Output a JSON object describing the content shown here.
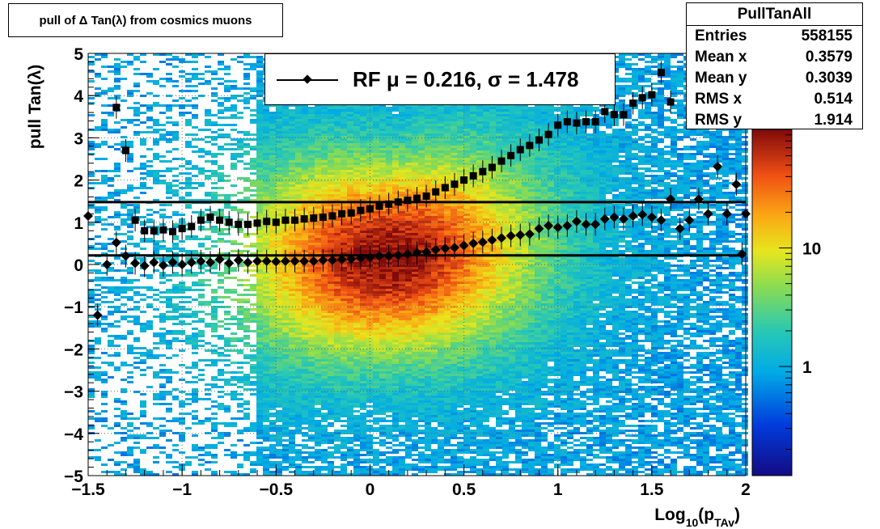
{
  "title": "pull of Δ Tan(λ) from cosmics muons",
  "stats": {
    "name": "PullTanAll",
    "rows": [
      {
        "label": "Entries",
        "value": "558155"
      },
      {
        "label": "Mean x",
        "value": "0.3579"
      },
      {
        "label": "Mean y",
        "value": "0.3039"
      },
      {
        "label": "RMS x",
        "value": "0.514"
      },
      {
        "label": "RMS y",
        "value": "1.914"
      }
    ]
  },
  "legend": {
    "text": "RF μ =  0.216, σ =   1.478"
  },
  "chart_data": {
    "type": "heatmap",
    "xlabel": "Log",
    "xlabel_sub": "10",
    "xlabel_rest": "(p",
    "xlabel_sub2": "TAv",
    "xlabel_end": ")",
    "ylabel": "pull Tan(λ)",
    "xlim": [
      -1.5,
      2
    ],
    "ylim": [
      -5,
      5
    ],
    "xticks": [
      -1.5,
      -1,
      -0.5,
      0,
      0.5,
      1,
      1.5,
      2
    ],
    "xtick_labels": [
      "−1.5",
      "−1",
      "−0.5",
      "0",
      "0.5",
      "1",
      "1.5",
      "2"
    ],
    "yticks": [
      -5,
      -4,
      -3,
      -2,
      -1,
      0,
      1,
      2,
      3,
      4,
      5
    ],
    "ytick_labels": [
      "−5",
      "−4",
      "−3",
      "−2",
      "−1",
      "0",
      "1",
      "2",
      "3",
      "4",
      "5"
    ],
    "colorbar": {
      "scale": "log",
      "range": [
        0.12,
        100
      ],
      "ticks": [
        1,
        10
      ],
      "tick_labels": [
        "1",
        "10"
      ]
    },
    "grid": true,
    "hlines": [
      1.478,
      0.216
    ],
    "series": [
      {
        "marker": "square",
        "points": [
          [
            -1.3,
            2.7
          ],
          [
            -1.25,
            1.05
          ],
          [
            -1.2,
            0.8
          ],
          [
            -1.15,
            0.8
          ],
          [
            -1.1,
            0.82
          ],
          [
            -1.05,
            0.78
          ],
          [
            -1.0,
            0.85
          ],
          [
            -0.95,
            0.9
          ],
          [
            -0.9,
            1.05
          ],
          [
            -0.85,
            1.12
          ],
          [
            -0.8,
            1.05
          ],
          [
            -0.75,
            1.0
          ],
          [
            -0.7,
            0.95
          ],
          [
            -0.65,
            0.95
          ],
          [
            -0.6,
            0.98
          ],
          [
            -0.55,
            1.02
          ],
          [
            -0.5,
            1.0
          ],
          [
            -0.45,
            1.05
          ],
          [
            -0.4,
            1.05
          ],
          [
            -0.35,
            1.08
          ],
          [
            -0.3,
            1.1
          ],
          [
            -0.25,
            1.12
          ],
          [
            -0.2,
            1.15
          ],
          [
            -0.15,
            1.2
          ],
          [
            -0.1,
            1.22
          ],
          [
            -0.05,
            1.28
          ],
          [
            0.0,
            1.32
          ],
          [
            0.05,
            1.38
          ],
          [
            0.1,
            1.43
          ],
          [
            0.15,
            1.48
          ],
          [
            0.2,
            1.52
          ],
          [
            0.25,
            1.57
          ],
          [
            0.3,
            1.62
          ],
          [
            0.35,
            1.72
          ],
          [
            0.4,
            1.82
          ],
          [
            0.45,
            1.9
          ],
          [
            0.5,
            2.0
          ],
          [
            0.55,
            2.1
          ],
          [
            0.6,
            2.2
          ],
          [
            0.65,
            2.3
          ],
          [
            0.7,
            2.45
          ],
          [
            0.75,
            2.58
          ],
          [
            0.8,
            2.72
          ],
          [
            0.85,
            2.82
          ],
          [
            0.9,
            2.95
          ],
          [
            0.95,
            3.08
          ],
          [
            1.0,
            3.3
          ],
          [
            1.05,
            3.38
          ],
          [
            1.1,
            3.35
          ],
          [
            1.15,
            3.38
          ],
          [
            1.2,
            3.38
          ],
          [
            1.25,
            3.62
          ],
          [
            1.3,
            3.55
          ],
          [
            1.35,
            3.55
          ],
          [
            1.4,
            3.82
          ],
          [
            1.45,
            3.95
          ],
          [
            1.5,
            4.02
          ],
          [
            1.55,
            4.55
          ],
          [
            1.6,
            3.85
          ]
        ]
      },
      {
        "marker": "diamond",
        "points": [
          [
            -1.5,
            1.15
          ],
          [
            -1.45,
            -1.2
          ],
          [
            -1.4,
            0.0
          ],
          [
            -1.35,
            0.52
          ],
          [
            -1.3,
            0.2
          ],
          [
            -1.25,
            0.03
          ],
          [
            -1.2,
            -0.03
          ],
          [
            -1.15,
            0.05
          ],
          [
            -1.1,
            -0.02
          ],
          [
            -1.05,
            0.05
          ],
          [
            -1.0,
            0.0
          ],
          [
            -0.95,
            0.05
          ],
          [
            -0.9,
            0.08
          ],
          [
            -0.85,
            0.05
          ],
          [
            -0.8,
            0.12
          ],
          [
            -0.75,
            0.03
          ],
          [
            -0.7,
            0.1
          ],
          [
            -0.65,
            0.05
          ],
          [
            -0.6,
            0.08
          ],
          [
            -0.55,
            0.08
          ],
          [
            -0.5,
            0.07
          ],
          [
            -0.45,
            0.08
          ],
          [
            -0.4,
            0.08
          ],
          [
            -0.35,
            0.08
          ],
          [
            -0.3,
            0.08
          ],
          [
            -0.25,
            0.1
          ],
          [
            -0.2,
            0.1
          ],
          [
            -0.15,
            0.12
          ],
          [
            -0.1,
            0.13
          ],
          [
            -0.05,
            0.15
          ],
          [
            0.0,
            0.17
          ],
          [
            0.05,
            0.2
          ],
          [
            0.1,
            0.2
          ],
          [
            0.15,
            0.22
          ],
          [
            0.2,
            0.25
          ],
          [
            0.25,
            0.28
          ],
          [
            0.3,
            0.3
          ],
          [
            0.35,
            0.35
          ],
          [
            0.4,
            0.38
          ],
          [
            0.45,
            0.4
          ],
          [
            0.5,
            0.45
          ],
          [
            0.55,
            0.5
          ],
          [
            0.6,
            0.53
          ],
          [
            0.65,
            0.58
          ],
          [
            0.7,
            0.63
          ],
          [
            0.75,
            0.68
          ],
          [
            0.8,
            0.7
          ],
          [
            0.85,
            0.72
          ],
          [
            0.9,
            0.85
          ],
          [
            0.95,
            0.92
          ],
          [
            1.0,
            0.88
          ],
          [
            1.05,
            0.92
          ],
          [
            1.1,
            1.02
          ],
          [
            1.15,
            0.95
          ],
          [
            1.2,
            0.95
          ],
          [
            1.25,
            1.08
          ],
          [
            1.3,
            1.12
          ],
          [
            1.35,
            1.08
          ],
          [
            1.4,
            1.15
          ],
          [
            1.45,
            1.18
          ],
          [
            1.5,
            1.12
          ],
          [
            1.55,
            1.05
          ],
          [
            1.6,
            1.55
          ],
          [
            1.65,
            0.85
          ],
          [
            1.7,
            1.05
          ],
          [
            1.75,
            1.55
          ],
          [
            1.8,
            1.2
          ],
          [
            1.85,
            2.32
          ],
          [
            1.9,
            1.2
          ],
          [
            1.95,
            1.9
          ],
          [
            2.0,
            1.2
          ]
        ]
      }
    ],
    "extra_points": [
      {
        "marker": "square",
        "x": -1.35,
        "y": 3.72
      },
      {
        "marker": "diamond",
        "x": 1.98,
        "y": 0.25
      }
    ]
  }
}
